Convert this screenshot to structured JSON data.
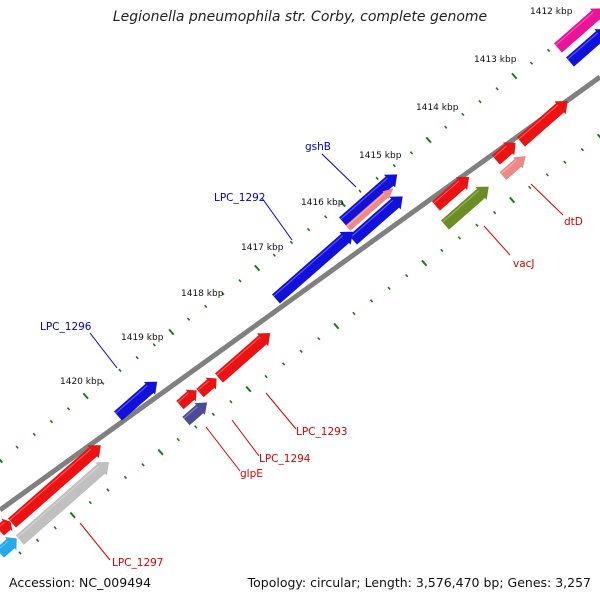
{
  "title": "Legionella pneumophila str. Corby, complete genome",
  "accession": "Accession: NC_009494",
  "summary": "Topology: circular; Length: 3,576,470 bp; Genes: 3,257",
  "colors": {
    "backbone": "#808080",
    "tick": "#1a7a1a",
    "label_forward": "#0000cc",
    "label_reverse": "#dd0000"
  },
  "tick_labels": [
    "1412 kbp",
    "1413 kbp",
    "1414 kbp",
    "1415 kbp",
    "1416 kbp",
    "1417 kbp",
    "1418 kbp",
    "1419 kbp",
    "1420 kbp"
  ],
  "gene_labels": [
    {
      "text": "gshB",
      "strand": "forward"
    },
    {
      "text": "LPC_1292",
      "strand": "forward"
    },
    {
      "text": "LPC_1296",
      "strand": "forward"
    },
    {
      "text": "dtD",
      "strand": "reverse"
    },
    {
      "text": "vacJ",
      "strand": "reverse"
    },
    {
      "text": "LPC_1293",
      "strand": "reverse"
    },
    {
      "text": "LPC_1294",
      "strand": "reverse"
    },
    {
      "text": "glpE",
      "strand": "reverse"
    },
    {
      "text": "LPC_1297",
      "strand": "reverse"
    }
  ],
  "features": [
    {
      "color": "#ee1199",
      "kind": "gene"
    },
    {
      "color": "#1111dd",
      "kind": "gene"
    },
    {
      "color": "#ee1111",
      "kind": "gene"
    },
    {
      "color": "#ee1111",
      "kind": "gene"
    },
    {
      "color": "#f08888",
      "kind": "gene"
    },
    {
      "color": "#1111dd",
      "kind": "gene"
    },
    {
      "color": "#f08888",
      "kind": "gene"
    },
    {
      "color": "#1111dd",
      "kind": "gene"
    },
    {
      "color": "#1111dd",
      "kind": "gene"
    },
    {
      "color": "#ee1111",
      "kind": "gene"
    },
    {
      "color": "#6b8e23",
      "kind": "gene"
    },
    {
      "color": "#1111dd",
      "kind": "gene"
    },
    {
      "color": "#ee1111",
      "kind": "gene"
    },
    {
      "color": "#ee1111",
      "kind": "gene"
    },
    {
      "color": "#ee1111",
      "kind": "gene"
    },
    {
      "color": "#4b4b99",
      "kind": "gene"
    },
    {
      "color": "#ee1111",
      "kind": "gene"
    },
    {
      "color": "#ee1111",
      "kind": "gene"
    },
    {
      "color": "#c0c0c0",
      "kind": "gene"
    },
    {
      "color": "#22aaee",
      "kind": "gene"
    }
  ]
}
